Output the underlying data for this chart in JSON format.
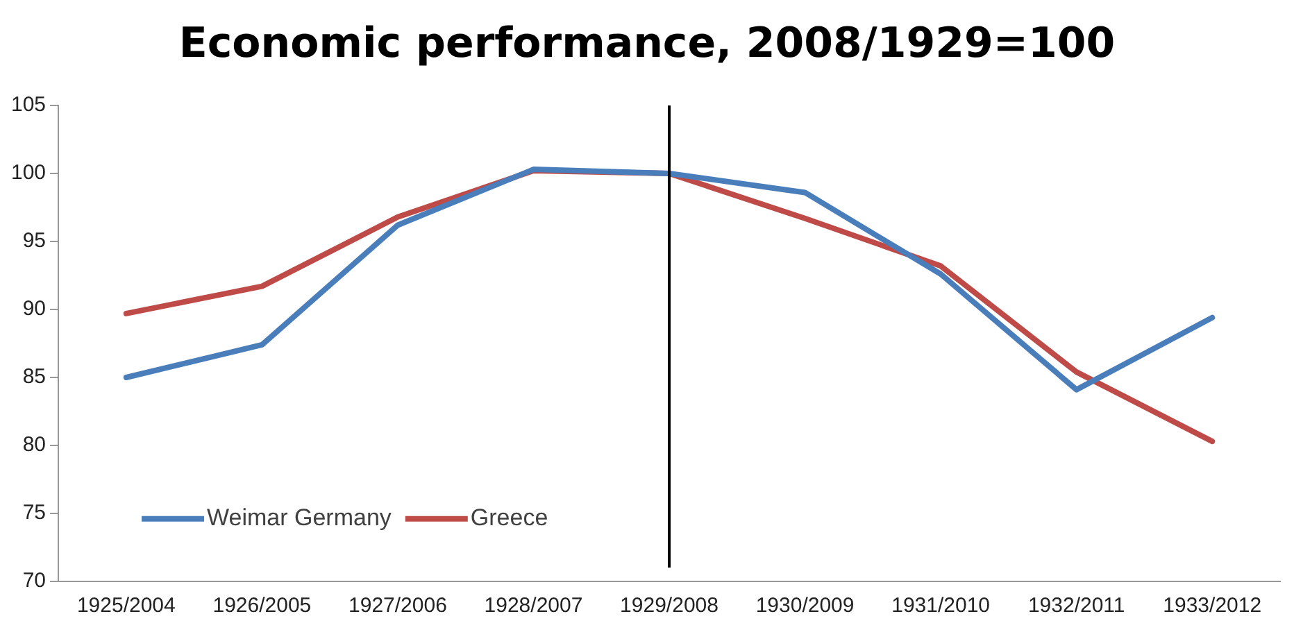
{
  "chart_data": {
    "type": "line",
    "title": "Economic performance, 2008/1929=100",
    "categories": [
      "1925/2004",
      "1926/2005",
      "1927/2006",
      "1928/2007",
      "1929/2008",
      "1930/2009",
      "1931/2010",
      "1932/2011",
      "1933/2012"
    ],
    "series": [
      {
        "name": "Weimar Germany",
        "color": "#4a7ebb",
        "values": [
          85,
          87.4,
          96.2,
          100.3,
          100,
          98.6,
          92.6,
          84.1,
          89.4
        ]
      },
      {
        "name": "Greece",
        "color": "#be4b48",
        "values": [
          89.7,
          91.7,
          96.8,
          100.2,
          100,
          96.7,
          93.2,
          85.4,
          80.3
        ]
      }
    ],
    "ylim": [
      70,
      105
    ],
    "yticks": [
      70,
      75,
      80,
      85,
      90,
      95,
      100,
      105
    ],
    "grid": false,
    "legend": "bottom left",
    "marker": "none",
    "line_style": "solid",
    "ref_lines": [
      {
        "axis": "x",
        "value": "1929/2008",
        "color": "#000000"
      }
    ]
  }
}
